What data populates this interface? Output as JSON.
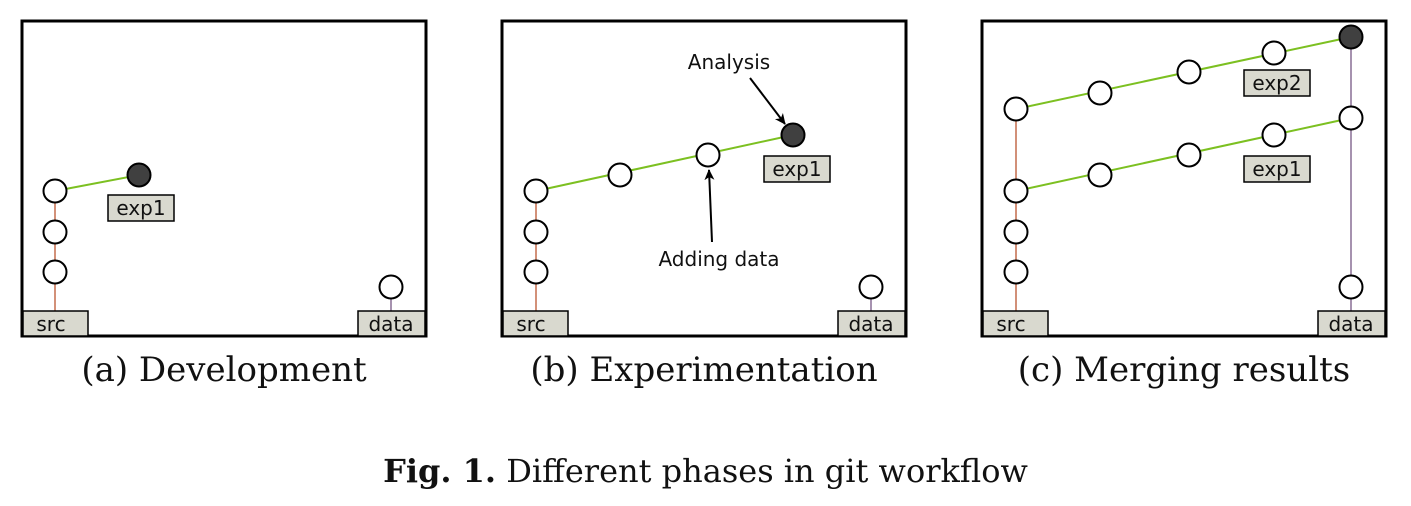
{
  "panels": [
    {
      "caption": "(a) Development",
      "branch_labels": {
        "src": "src",
        "data": "data",
        "exp1": "exp1"
      }
    },
    {
      "caption": "(b) Experimentation",
      "branch_labels": {
        "src": "src",
        "data": "data",
        "exp1": "exp1"
      },
      "annotations": {
        "analysis": "Analysis",
        "adding_data": "Adding data"
      }
    },
    {
      "caption": "(c) Merging results",
      "branch_labels": {
        "src": "src",
        "data": "data",
        "exp1": "exp1",
        "exp2": "exp2"
      }
    }
  ],
  "figure": {
    "label": "Fig. 1.",
    "title": "Different phases in git workflow"
  },
  "colors": {
    "src_line": "#b5471f",
    "exp_line": "#7cc021",
    "data_line": "#6b4a7a",
    "node_fill": "#ffffff",
    "head_fill": "#404040",
    "tag_fill": "#d9d9cf"
  }
}
